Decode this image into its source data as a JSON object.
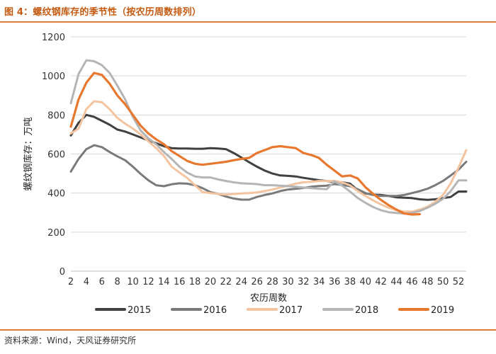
{
  "figure_title": "图 4：螺纹钢库存的季节性（按农历周数排列）",
  "source": "资料来源：Wind，天风证券研究所",
  "chart_data": {
    "type": "line",
    "title": "",
    "xlabel": "农历周数",
    "ylabel": "螺纹钢库存：万吨",
    "ylim": [
      0,
      1200
    ],
    "yticks": [
      0,
      200,
      400,
      600,
      800,
      1000,
      1200
    ],
    "xlim": [
      2,
      53
    ],
    "xticks": [
      2,
      4,
      6,
      8,
      10,
      12,
      14,
      16,
      18,
      20,
      22,
      24,
      26,
      28,
      30,
      32,
      34,
      36,
      38,
      40,
      42,
      44,
      46,
      48,
      50,
      52
    ],
    "grid": "horizontal",
    "legend_position": "bottom",
    "series": [
      {
        "name": "2015",
        "color": "#404040",
        "x": [
          2,
          3,
          4,
          5,
          6,
          7,
          8,
          9,
          10,
          11,
          12,
          13,
          14,
          15,
          16,
          17,
          18,
          19,
          20,
          21,
          22,
          23,
          24,
          25,
          26,
          27,
          28,
          29,
          30,
          31,
          32,
          33,
          34,
          35,
          36,
          37,
          38,
          39,
          40,
          41,
          42,
          43,
          44,
          45,
          46,
          47,
          48,
          49,
          50,
          51,
          52,
          53
        ],
        "values": [
          695,
          760,
          800,
          790,
          770,
          750,
          725,
          715,
          700,
          685,
          670,
          655,
          640,
          630,
          628,
          628,
          627,
          627,
          630,
          628,
          625,
          605,
          582,
          558,
          535,
          515,
          500,
          490,
          488,
          485,
          478,
          472,
          466,
          462,
          458,
          455,
          448,
          415,
          398,
          392,
          390,
          385,
          378,
          376,
          374,
          368,
          365,
          368,
          374,
          380,
          408,
          408
        ]
      },
      {
        "name": "2016",
        "color": "#7a7a7a",
        "x": [
          2,
          3,
          4,
          5,
          6,
          7,
          8,
          9,
          10,
          11,
          12,
          13,
          14,
          15,
          16,
          17,
          18,
          19,
          20,
          21,
          22,
          23,
          24,
          25,
          26,
          27,
          28,
          29,
          30,
          31,
          32,
          33,
          34,
          35,
          36,
          37,
          38,
          39,
          40,
          41,
          42,
          43,
          44,
          45,
          46,
          47,
          48,
          49,
          50,
          51,
          52,
          53
        ],
        "values": [
          510,
          575,
          625,
          645,
          635,
          610,
          588,
          568,
          535,
          498,
          465,
          440,
          435,
          445,
          450,
          448,
          440,
          425,
          405,
          395,
          382,
          372,
          366,
          366,
          380,
          390,
          398,
          410,
          418,
          422,
          426,
          432,
          436,
          438,
          446,
          442,
          435,
          420,
          400,
          390,
          385,
          385,
          385,
          390,
          400,
          410,
          422,
          440,
          462,
          490,
          520,
          560
        ]
      },
      {
        "name": "2017",
        "color": "#f4c4a0",
        "x": [
          2,
          3,
          4,
          5,
          6,
          7,
          8,
          9,
          10,
          11,
          12,
          13,
          14,
          15,
          16,
          17,
          18,
          19,
          20,
          21,
          22,
          23,
          24,
          25,
          26,
          27,
          28,
          29,
          30,
          31,
          32,
          33,
          34,
          35,
          36,
          37,
          38,
          39,
          40,
          41,
          42,
          43,
          44,
          45,
          46,
          47,
          48,
          49,
          50,
          51,
          52,
          53
        ],
        "values": [
          705,
          730,
          830,
          870,
          865,
          830,
          785,
          755,
          730,
          700,
          665,
          630,
          590,
          535,
          505,
          478,
          440,
          405,
          400,
          395,
          392,
          395,
          398,
          400,
          403,
          410,
          418,
          428,
          438,
          448,
          455,
          458,
          462,
          462,
          462,
          455,
          440,
          410,
          385,
          362,
          342,
          325,
          312,
          305,
          305,
          315,
          330,
          355,
          390,
          450,
          530,
          620
        ]
      },
      {
        "name": "2018",
        "color": "#b5b5b5",
        "x": [
          2,
          3,
          4,
          5,
          6,
          7,
          8,
          9,
          10,
          11,
          12,
          13,
          14,
          15,
          16,
          17,
          18,
          19,
          20,
          21,
          22,
          23,
          24,
          25,
          26,
          27,
          28,
          29,
          30,
          31,
          32,
          33,
          34,
          35,
          36,
          37,
          38,
          39,
          40,
          41,
          42,
          43,
          44,
          45,
          46,
          47,
          48,
          49,
          50,
          51,
          52,
          53
        ],
        "values": [
          860,
          1010,
          1080,
          1075,
          1055,
          1015,
          950,
          880,
          790,
          720,
          680,
          650,
          610,
          575,
          535,
          505,
          485,
          480,
          480,
          470,
          462,
          455,
          450,
          448,
          446,
          440,
          440,
          438,
          435,
          432,
          428,
          425,
          422,
          420,
          460,
          438,
          408,
          375,
          350,
          328,
          312,
          302,
          298,
          295,
          298,
          308,
          325,
          345,
          370,
          410,
          465,
          465
        ]
      },
      {
        "name": "2019",
        "color": "#e8782e",
        "x": [
          2,
          3,
          4,
          5,
          6,
          7,
          8,
          9,
          10,
          11,
          12,
          13,
          14,
          15,
          16,
          17,
          18,
          19,
          20,
          21,
          22,
          23,
          24,
          25,
          26,
          27,
          28,
          29,
          30,
          31,
          32,
          33,
          34,
          35,
          36,
          37,
          38,
          39,
          40,
          41,
          42,
          43,
          44,
          45,
          46,
          47
        ],
        "values": [
          740,
          880,
          965,
          1015,
          1005,
          960,
          900,
          855,
          800,
          745,
          705,
          675,
          650,
          615,
          590,
          565,
          550,
          545,
          550,
          555,
          560,
          568,
          575,
          580,
          605,
          620,
          635,
          640,
          635,
          630,
          605,
          595,
          580,
          545,
          515,
          485,
          490,
          475,
          430,
          395,
          365,
          338,
          315,
          295,
          290,
          292
        ]
      }
    ]
  }
}
